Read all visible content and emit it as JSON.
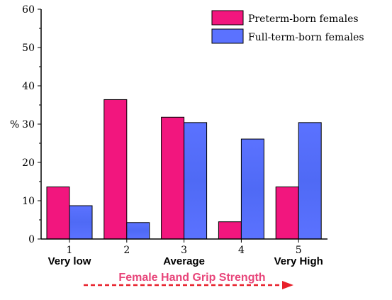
{
  "chart_data": {
    "type": "bar",
    "categories": [
      "1",
      "2",
      "3",
      "4",
      "5"
    ],
    "category_descriptions": [
      "Very low",
      "",
      "Average",
      "",
      "Very High"
    ],
    "series": [
      {
        "name": "Preterm-born females",
        "values": [
          13.6,
          36.4,
          31.8,
          4.5,
          13.6
        ],
        "color": "#f2167e"
      },
      {
        "name": "Full-term-born females",
        "values": [
          8.7,
          4.3,
          30.4,
          26.1,
          30.4
        ],
        "color": "#5b72ff"
      }
    ],
    "ylabel": "%",
    "ylim": [
      0,
      60
    ],
    "yticks": [
      0,
      10,
      20,
      30,
      40,
      50,
      60
    ],
    "xlabel": "Female Hand Grip Strength",
    "legend_position": "top-right",
    "grid": false,
    "arrow_color": "#e8202a"
  }
}
